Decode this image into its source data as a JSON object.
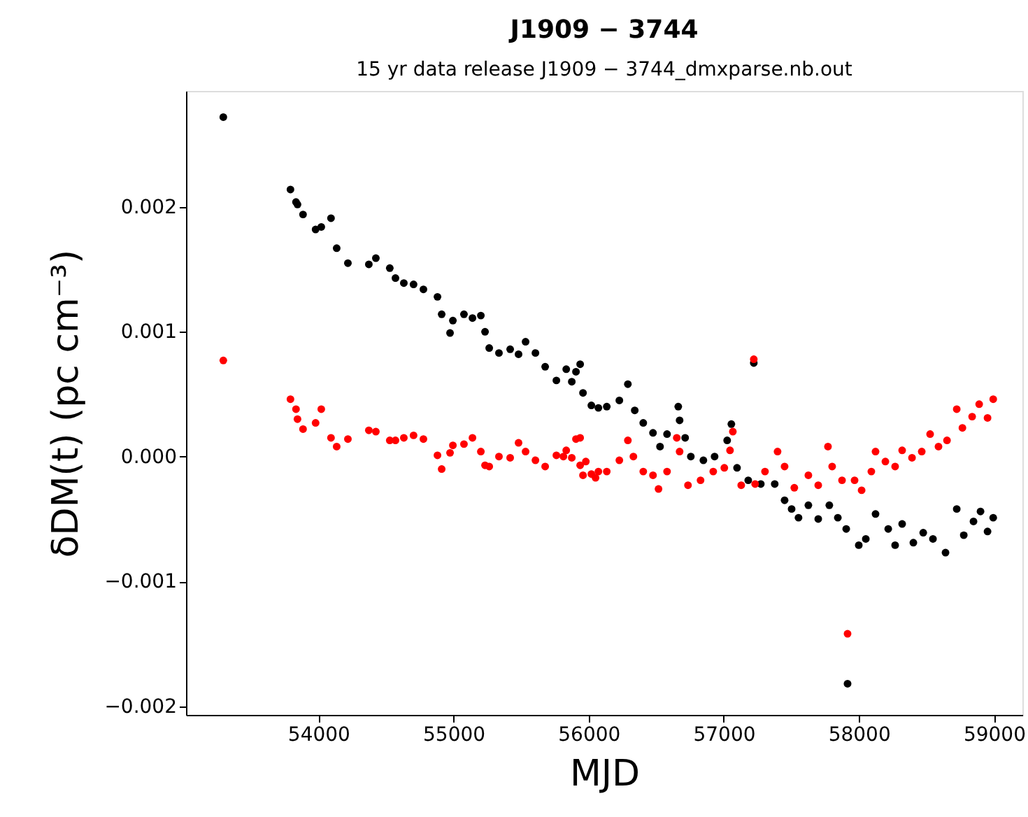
{
  "chart_data": {
    "type": "scatter",
    "title": "J1909 − 3744",
    "subtitle": "15 yr data release       J1909 − 3744_dmxparse.nb.out",
    "xlabel": "MJD",
    "ylabel": "δDM(t)    (pc cm⁻³)",
    "xlim": [
      53020,
      59210
    ],
    "ylim": [
      -0.00207,
      0.00293
    ],
    "xticks": [
      54000,
      55000,
      56000,
      57000,
      58000,
      59000
    ],
    "yticks": [
      {
        "value": -0.002,
        "label": "−0.002"
      },
      {
        "value": -0.001,
        "label": "−0.001"
      },
      {
        "value": 0,
        "label": "0.000"
      },
      0.001,
      0.002
    ],
    "grid": false,
    "legend": false,
    "marker": "circle",
    "series": [
      {
        "color": "#000000",
        "x": [
          53296,
          53793,
          53834,
          53845,
          53886,
          53979,
          54021,
          54093,
          54135,
          54218,
          54373,
          54425,
          54528,
          54570,
          54632,
          54704,
          54777,
          54881,
          54912,
          54974,
          54995,
          55077,
          55140,
          55202,
          55233,
          55264,
          55336,
          55419,
          55481,
          55533,
          55606,
          55678,
          55761,
          55834,
          55875,
          55906,
          55937,
          55958,
          56020,
          56072,
          56134,
          56227,
          56290,
          56341,
          56404,
          56476,
          56528,
          56580,
          56663,
          56673,
          56714,
          56756,
          56849,
          56932,
          57025,
          57056,
          57098,
          57181,
          57222,
          57274,
          57377,
          57450,
          57502,
          57553,
          57626,
          57699,
          57781,
          57844,
          57906,
          57916,
          57999,
          58051,
          58123,
          58217,
          58268,
          58320,
          58403,
          58476,
          58548,
          58641,
          58724,
          58776,
          58848,
          58900,
          58952,
          58994
        ],
        "values": [
          0.00272,
          0.00214,
          0.00204,
          0.00202,
          0.00194,
          0.00182,
          0.00184,
          0.00191,
          0.00167,
          0.00155,
          0.00154,
          0.00159,
          0.00151,
          0.00143,
          0.00139,
          0.00138,
          0.00134,
          0.00128,
          0.00114,
          0.00099,
          0.00109,
          0.00114,
          0.00111,
          0.00113,
          0.001,
          0.00087,
          0.00083,
          0.00086,
          0.00082,
          0.00092,
          0.00083,
          0.00072,
          0.00061,
          0.0007,
          0.0006,
          0.00068,
          0.00074,
          0.00051,
          0.00041,
          0.00039,
          0.0004,
          0.00045,
          0.00058,
          0.00037,
          0.00027,
          0.00019,
          8e-05,
          0.00018,
          0.0004,
          0.00029,
          0.00015,
          0.0,
          -3e-05,
          0.0,
          0.00013,
          0.00026,
          -9e-05,
          -0.00019,
          0.00075,
          -0.00022,
          -0.00022,
          -0.00035,
          -0.00042,
          -0.00049,
          -0.00039,
          -0.0005,
          -0.00039,
          -0.00049,
          -0.00058,
          -0.00182,
          -0.00071,
          -0.00066,
          -0.00046,
          -0.00058,
          -0.00071,
          -0.00054,
          -0.00069,
          -0.00061,
          -0.00066,
          -0.00077,
          -0.00042,
          -0.00063,
          -0.00052,
          -0.00044,
          -0.0006,
          -0.00049
        ]
      },
      {
        "color": "#ff0000",
        "x": [
          53296,
          53793,
          53834,
          53845,
          53886,
          53979,
          54021,
          54093,
          54135,
          54218,
          54373,
          54425,
          54528,
          54570,
          54632,
          54704,
          54777,
          54881,
          54912,
          54974,
          54995,
          55077,
          55140,
          55202,
          55233,
          55264,
          55336,
          55419,
          55481,
          55533,
          55606,
          55678,
          55761,
          55834,
          55875,
          55906,
          55937,
          55958,
          56020,
          56072,
          55813,
          55937,
          55979,
          56051,
          56134,
          56227,
          56290,
          56331,
          56404,
          56476,
          56517,
          56580,
          56652,
          56673,
          56735,
          56828,
          56922,
          57004,
          57046,
          57067,
          57129,
          57222,
          57232,
          57305,
          57398,
          57450,
          57522,
          57626,
          57699,
          57771,
          57802,
          57875,
          57916,
          57968,
          58020,
          58092,
          58123,
          58196,
          58268,
          58320,
          58393,
          58465,
          58527,
          58589,
          58652,
          58724,
          58766,
          58838,
          58890,
          58952,
          58994
        ],
        "values": [
          0.00077,
          0.00046,
          0.00038,
          0.0003,
          0.00022,
          0.00027,
          0.00038,
          0.00015,
          8e-05,
          0.00014,
          0.00021,
          0.0002,
          0.00013,
          0.00013,
          0.00015,
          0.00017,
          0.00014,
          1e-05,
          -0.0001,
          3e-05,
          9e-05,
          0.0001,
          0.00015,
          4e-05,
          -7e-05,
          -8e-05,
          0.0,
          -1e-05,
          0.00011,
          4e-05,
          -3e-05,
          -8e-05,
          1e-05,
          5e-05,
          -1e-05,
          0.00014,
          -7e-05,
          -0.00015,
          -0.00014,
          -0.00012,
          0.0,
          0.00015,
          -4e-05,
          -0.00017,
          -0.00012,
          -3e-05,
          0.00013,
          0.0,
          -0.00012,
          -0.00015,
          -0.00026,
          -0.00012,
          0.00015,
          4e-05,
          -0.00023,
          -0.00019,
          -0.00012,
          -9e-05,
          5e-05,
          0.0002,
          -0.00023,
          0.00078,
          -0.00022,
          -0.00012,
          4e-05,
          -8e-05,
          -0.00025,
          -0.00015,
          -0.00023,
          8e-05,
          -8e-05,
          -0.00019,
          -0.00142,
          -0.00019,
          -0.00027,
          -0.00012,
          4e-05,
          -4e-05,
          -8e-05,
          5e-05,
          -1e-05,
          4e-05,
          0.00018,
          8e-05,
          0.00013,
          0.00038,
          0.00023,
          0.00032,
          0.00042,
          0.00031,
          0.00046
        ]
      }
    ]
  }
}
